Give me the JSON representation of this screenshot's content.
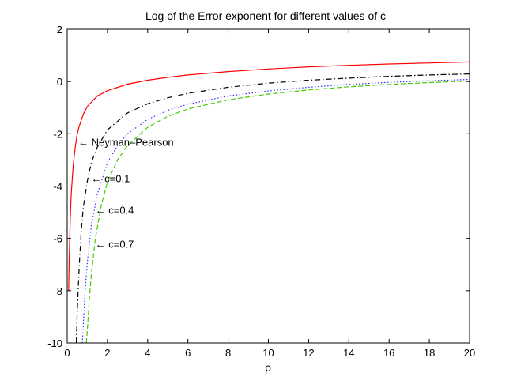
{
  "chart_data": {
    "type": "line",
    "title": "Log of the Error exponent for different values of c",
    "xlabel": "ρ",
    "ylabel": "",
    "xlim": [
      0,
      20
    ],
    "ylim": [
      -10,
      2
    ],
    "xticks": [
      0,
      2,
      4,
      6,
      8,
      10,
      12,
      14,
      16,
      18,
      20
    ],
    "yticks": [
      -10,
      -8,
      -6,
      -4,
      -2,
      0,
      2
    ],
    "grid": false,
    "series": [
      {
        "name": "Neyman-Pearson",
        "color": "#ff0000",
        "dash": "solid",
        "x": [
          0.07,
          0.1,
          0.15,
          0.2,
          0.3,
          0.4,
          0.5,
          0.6,
          0.8,
          1.0,
          1.5,
          2,
          3,
          4,
          5,
          6,
          8,
          10,
          12,
          14,
          16,
          18,
          20
        ],
        "y": [
          -8.0,
          -6.8,
          -5.3,
          -4.3,
          -3.2,
          -2.5,
          -2.0,
          -1.7,
          -1.25,
          -0.95,
          -0.55,
          -0.35,
          -0.1,
          0.05,
          0.16,
          0.25,
          0.38,
          0.48,
          0.56,
          0.62,
          0.67,
          0.71,
          0.75
        ]
      },
      {
        "name": "c=0.1",
        "color": "#000000",
        "dash": "dashdot",
        "x": [
          0.45,
          0.5,
          0.6,
          0.7,
          0.8,
          1.0,
          1.2,
          1.5,
          2,
          3,
          4,
          5,
          6,
          8,
          10,
          12,
          14,
          16,
          18,
          20
        ],
        "y": [
          -10,
          -8.8,
          -7.0,
          -5.7,
          -4.8,
          -3.8,
          -3.1,
          -2.5,
          -1.85,
          -1.2,
          -0.85,
          -0.62,
          -0.45,
          -0.22,
          -0.06,
          0.05,
          0.13,
          0.2,
          0.25,
          0.29
        ]
      },
      {
        "name": "c=0.4",
        "color": "#3333ff",
        "dash": "dotted",
        "x": [
          0.75,
          0.8,
          0.9,
          1.0,
          1.2,
          1.5,
          2,
          2.5,
          3,
          4,
          5,
          6,
          8,
          10,
          12,
          14,
          16,
          18,
          20
        ],
        "y": [
          -10,
          -9.3,
          -7.9,
          -6.9,
          -5.5,
          -4.3,
          -3.1,
          -2.45,
          -2.0,
          -1.45,
          -1.1,
          -0.87,
          -0.55,
          -0.36,
          -0.22,
          -0.11,
          -0.03,
          0.03,
          0.08
        ]
      },
      {
        "name": "c=0.7",
        "color": "#44cc00",
        "dash": "dashed",
        "x": [
          0.95,
          1.0,
          1.1,
          1.2,
          1.4,
          1.7,
          2,
          2.5,
          3,
          4,
          5,
          6,
          8,
          10,
          12,
          14,
          16,
          18,
          20
        ],
        "y": [
          -10,
          -9.5,
          -8.3,
          -7.4,
          -6.0,
          -4.7,
          -3.85,
          -3.0,
          -2.45,
          -1.75,
          -1.33,
          -1.05,
          -0.7,
          -0.48,
          -0.32,
          -0.2,
          -0.11,
          -0.04,
          0.02
        ]
      }
    ],
    "annotations": [
      {
        "text": "← Neyman–Pearson",
        "x": 0.55,
        "y": -2.3
      },
      {
        "text": "← c=0.1",
        "x": 1.2,
        "y": -3.7
      },
      {
        "text": "← c=0.4",
        "x": 1.4,
        "y": -4.9
      },
      {
        "text": "← c=0.7",
        "x": 1.4,
        "y": -6.2
      }
    ]
  }
}
